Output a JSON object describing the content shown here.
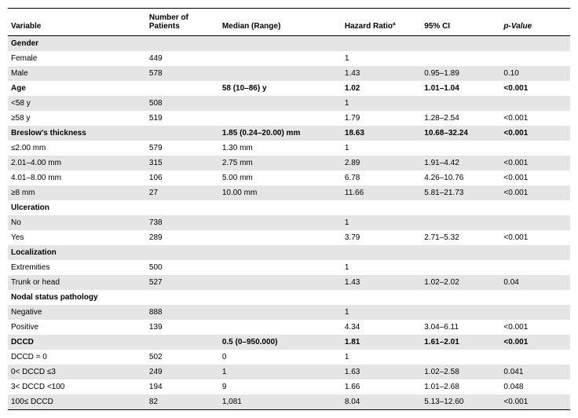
{
  "headers": [
    "Variable",
    "Number of Patients",
    "Median (Range)",
    "Hazard Ratioª",
    "95% CI",
    "p-Value"
  ],
  "rows": [
    {
      "band": true,
      "section": true,
      "cells": [
        "Gender",
        "",
        "",
        "",
        "",
        ""
      ]
    },
    {
      "band": false,
      "section": false,
      "cells": [
        "Female",
        "449",
        "",
        "1",
        "",
        ""
      ]
    },
    {
      "band": true,
      "section": false,
      "cells": [
        "Male",
        "578",
        "",
        "1.43",
        "0.95–1.89",
        "0.10"
      ]
    },
    {
      "band": false,
      "section": true,
      "cells": [
        "Age",
        "",
        "58 (10–86) y",
        "1.02",
        "1.01–1.04",
        "<0.001"
      ]
    },
    {
      "band": true,
      "section": false,
      "cells": [
        "<58 y",
        "508",
        "",
        "1",
        "",
        ""
      ]
    },
    {
      "band": false,
      "section": false,
      "cells": [
        "≥58 y",
        "519",
        "",
        "1.79",
        "1.28–2.54",
        "<0.001"
      ]
    },
    {
      "band": true,
      "section": true,
      "cells": [
        "Breslow's thickness",
        "",
        "1.85 (0.24–20.00) mm",
        "18.63",
        "10.68–32.24",
        "<0.001"
      ]
    },
    {
      "band": false,
      "section": false,
      "cells": [
        "≤2.00 mm",
        "579",
        "1.30 mm",
        "1",
        "",
        ""
      ]
    },
    {
      "band": true,
      "section": false,
      "cells": [
        "2.01–4.00 mm",
        "315",
        "2.75 mm",
        "2.89",
        "1.91–4.42",
        "<0.001"
      ]
    },
    {
      "band": false,
      "section": false,
      "cells": [
        "4.01–8.00 mm",
        "106",
        "5.00 mm",
        "6.78",
        "4.26–10.76",
        "<0.001"
      ]
    },
    {
      "band": true,
      "section": false,
      "cells": [
        "≥8 mm",
        "27",
        "10.00 mm",
        "11.66",
        "5.81–21.73",
        "<0.001"
      ]
    },
    {
      "band": false,
      "section": true,
      "cells": [
        "Ulceration",
        "",
        "",
        "",
        "",
        ""
      ]
    },
    {
      "band": true,
      "section": false,
      "cells": [
        "No",
        "738",
        "",
        "1",
        "",
        ""
      ]
    },
    {
      "band": false,
      "section": false,
      "cells": [
        "Yes",
        "289",
        "",
        "3.79",
        "2.71–5.32",
        "<0.001"
      ]
    },
    {
      "band": true,
      "section": true,
      "cells": [
        "Localization",
        "",
        "",
        "",
        "",
        ""
      ]
    },
    {
      "band": false,
      "section": false,
      "cells": [
        "Extremities",
        "500",
        "",
        "1",
        "",
        ""
      ]
    },
    {
      "band": true,
      "section": false,
      "cells": [
        "Trunk or head",
        "527",
        "",
        "1.43",
        "1.02–2.02",
        "0.04"
      ]
    },
    {
      "band": false,
      "section": true,
      "cells": [
        "Nodal status pathology",
        "",
        "",
        "",
        "",
        ""
      ]
    },
    {
      "band": true,
      "section": false,
      "cells": [
        "Negative",
        "888",
        "",
        "1",
        "",
        ""
      ]
    },
    {
      "band": false,
      "section": false,
      "cells": [
        "Positive",
        "139",
        "",
        "4.34",
        "3.04–6.11",
        "<0.001"
      ]
    },
    {
      "band": true,
      "section": true,
      "cells": [
        "DCCD",
        "",
        "0.5 (0–950.000)",
        "1.81",
        "1.61–2.01",
        "<0.001"
      ]
    },
    {
      "band": false,
      "section": false,
      "cells": [
        "DCCD = 0",
        "502",
        "0",
        "1",
        "",
        ""
      ]
    },
    {
      "band": true,
      "section": false,
      "cells": [
        "0< DCCD ≤3",
        "249",
        "1",
        "1.63",
        "1.02–2.58",
        "0.041"
      ]
    },
    {
      "band": false,
      "section": false,
      "cells": [
        "3< DCCD <100",
        "194",
        "9",
        "1.66",
        "1.01–2.68",
        "0.048"
      ]
    },
    {
      "band": true,
      "section": false,
      "cells": [
        "100≤ DCCD",
        "82",
        "1,081",
        "8.04",
        "5.13–12.60",
        "<0.001"
      ]
    }
  ]
}
